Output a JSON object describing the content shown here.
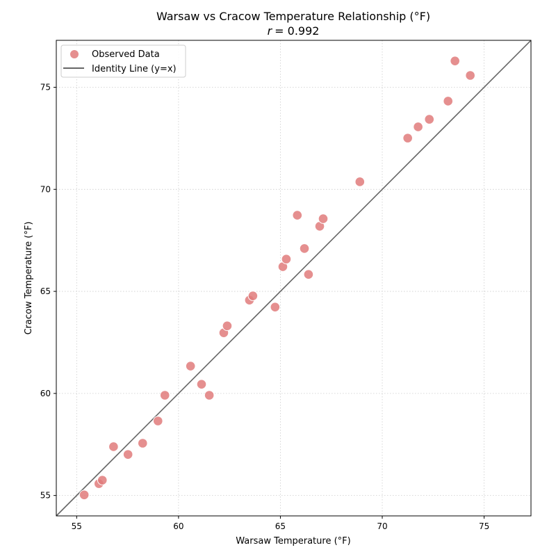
{
  "chart_data": {
    "type": "scatter",
    "title": "Warsaw vs Cracow Temperature Relationship (°F)",
    "subtitle": "r = 0.992",
    "subtitle_var": "r",
    "subtitle_value": "= 0.992",
    "xlabel": "Warsaw Temperature (°F)",
    "ylabel": "Cracow Temperature (°F)",
    "xlim": [
      54.0,
      77.3
    ],
    "ylim": [
      54.0,
      77.3
    ],
    "xticks": [
      55,
      60,
      65,
      70,
      75
    ],
    "yticks": [
      55,
      60,
      65,
      70,
      75
    ],
    "grid": true,
    "legend": "top-left",
    "colors": {
      "points": "#e07b7b",
      "identity_line": "#666666"
    },
    "series": [
      {
        "name": "Observed Data",
        "kind": "scatter",
        "x": [
          55.37,
          56.09,
          56.26,
          56.81,
          57.52,
          58.24,
          58.99,
          59.33,
          60.59,
          61.13,
          61.51,
          62.22,
          62.39,
          63.48,
          63.65,
          64.74,
          65.12,
          65.29,
          65.83,
          66.18,
          66.38,
          66.93,
          67.1,
          68.9,
          71.25,
          71.76,
          72.31,
          73.23,
          73.57,
          74.32
        ],
        "y": [
          55.03,
          55.58,
          55.75,
          57.39,
          57.01,
          57.56,
          58.65,
          59.91,
          61.34,
          60.45,
          59.91,
          62.97,
          63.31,
          64.57,
          64.78,
          64.23,
          66.21,
          66.58,
          68.73,
          67.1,
          65.83,
          68.19,
          68.56,
          70.37,
          72.51,
          73.06,
          73.43,
          74.32,
          76.29,
          75.58
        ]
      },
      {
        "name": "Identity Line (y=x)",
        "kind": "line"
      }
    ]
  }
}
